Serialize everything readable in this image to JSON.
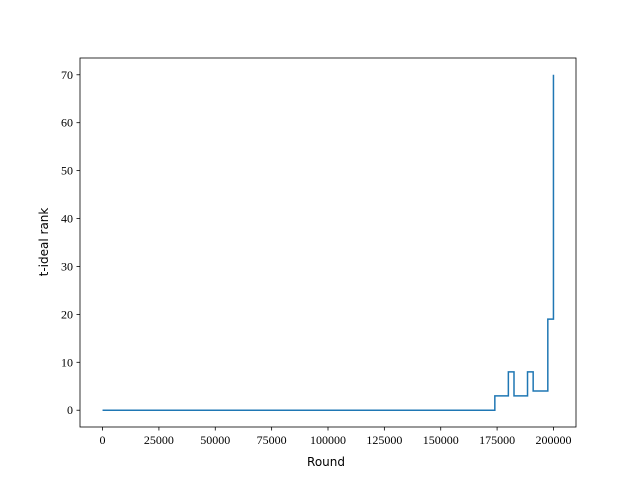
{
  "chart_data": {
    "type": "line",
    "step": "post",
    "xlabel": "Round",
    "ylabel": "t-ideal rank",
    "x": [
      0,
      174000,
      180000,
      182500,
      188500,
      191000,
      197500,
      200000
    ],
    "series": [
      {
        "name": "rank",
        "color": "#1f77b4",
        "values": [
          0,
          3,
          8,
          3,
          8,
          4,
          19,
          70
        ]
      }
    ],
    "xlim": [
      -10000,
      210000
    ],
    "xticks": [
      0,
      25000,
      50000,
      75000,
      100000,
      125000,
      150000,
      175000,
      200000
    ],
    "ylim": [
      -3.5,
      73.5
    ],
    "yticks": [
      0,
      10,
      20,
      30,
      40,
      50,
      60,
      70
    ]
  }
}
